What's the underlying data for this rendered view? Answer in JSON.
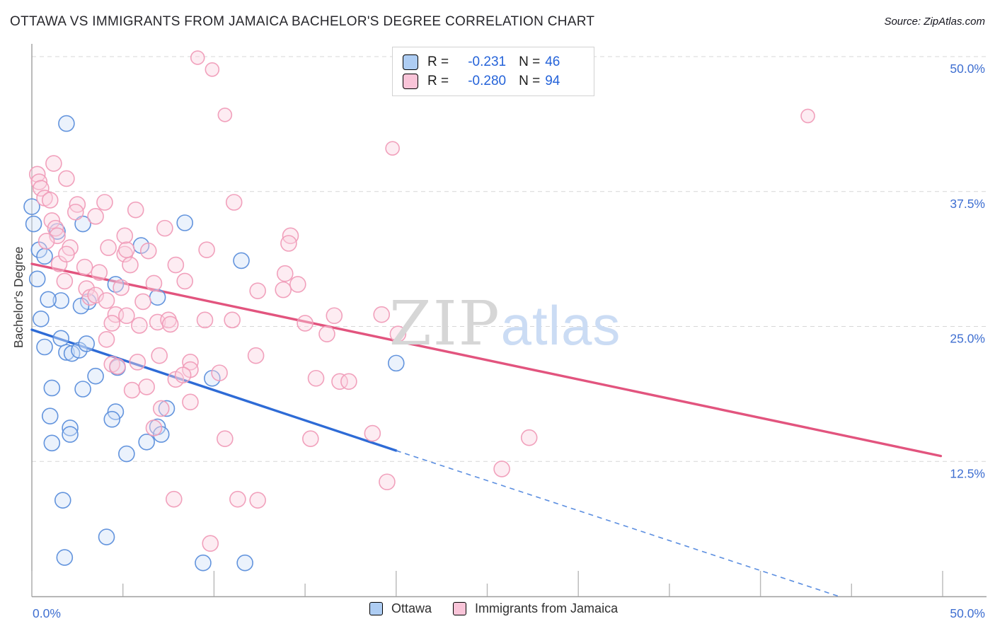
{
  "page": {
    "title": "OTTAWA VS IMMIGRANTS FROM JAMAICA BACHELOR'S DEGREE CORRELATION CHART",
    "source": "Source: ZipAtlas.com"
  },
  "watermark": {
    "zip": "ZIP",
    "atlas": "atlas"
  },
  "legend_box": {
    "rows": [
      {
        "series": "Ottawa",
        "r_label": "R =",
        "r_value": "-0.231",
        "n_label": "N =",
        "n_value": "46"
      },
      {
        "series": "Immigrants from Jamaica",
        "r_label": "R =",
        "r_value": "-0.280",
        "n_label": "N =",
        "n_value": "94"
      }
    ]
  },
  "bottom_legend": [
    {
      "label": "Ottawa"
    },
    {
      "label": "Immigrants from Jamaica"
    }
  ],
  "chart_data": {
    "type": "scatter",
    "title": "OTTAWA VS IMMIGRANTS FROM JAMAICA BACHELOR'S DEGREE CORRELATION CHART",
    "xlabel": "",
    "ylabel": "Bachelor's Degree",
    "x_axis": {
      "min": 0,
      "max": 50,
      "tick_step": 5,
      "label_left": "0.0%",
      "label_right": "50.0%",
      "unit": "%"
    },
    "y_axis": {
      "min": 0,
      "max": 51,
      "gridlines": [
        12.5,
        25,
        37.5,
        50
      ],
      "tick_labels": [
        "12.5%",
        "25.0%",
        "37.5%",
        "50.0%"
      ],
      "side": "right",
      "grid_style": "dashed"
    },
    "legend_position": "top-center",
    "series": [
      {
        "name": "Ottawa",
        "R": -0.231,
        "N": 46,
        "marker_fill": "#cfe0f7",
        "marker_stroke": "#5b8edb",
        "points": [
          [
            1.9,
            43.8
          ],
          [
            0.0,
            36.1
          ],
          [
            0.1,
            34.5
          ],
          [
            2.8,
            34.5
          ],
          [
            1.4,
            33.8
          ],
          [
            8.4,
            34.6
          ],
          [
            6.0,
            32.5
          ],
          [
            0.4,
            32.1
          ],
          [
            0.7,
            31.5
          ],
          [
            0.3,
            29.4
          ],
          [
            11.5,
            31.1
          ],
          [
            1.6,
            27.4
          ],
          [
            0.5,
            25.7
          ],
          [
            4.6,
            28.9
          ],
          [
            3.1,
            27.3
          ],
          [
            2.7,
            26.9
          ],
          [
            6.9,
            27.7
          ],
          [
            0.9,
            27.5
          ],
          [
            1.6,
            23.9
          ],
          [
            0.7,
            23.1
          ],
          [
            1.9,
            22.6
          ],
          [
            2.2,
            22.5
          ],
          [
            2.6,
            22.8
          ],
          [
            3.0,
            23.4
          ],
          [
            3.5,
            20.4
          ],
          [
            1.1,
            19.3
          ],
          [
            2.8,
            19.2
          ],
          [
            4.7,
            21.2
          ],
          [
            9.9,
            20.2
          ],
          [
            4.6,
            17.1
          ],
          [
            4.4,
            16.4
          ],
          [
            2.1,
            15.6
          ],
          [
            6.9,
            15.7
          ],
          [
            7.4,
            17.4
          ],
          [
            1.0,
            16.7
          ],
          [
            20.0,
            21.6
          ],
          [
            1.1,
            14.2
          ],
          [
            2.1,
            15.0
          ],
          [
            6.3,
            14.3
          ],
          [
            7.1,
            15.0
          ],
          [
            5.2,
            13.2
          ],
          [
            1.7,
            8.9
          ],
          [
            4.1,
            5.5
          ],
          [
            1.8,
            3.6
          ],
          [
            9.4,
            3.1
          ],
          [
            11.7,
            3.1
          ]
        ]
      },
      {
        "name": "Immigrants from Jamaica",
        "R": -0.28,
        "N": 94,
        "marker_fill": "#fad2e0",
        "marker_stroke": "#f09cb8",
        "points": [
          [
            9.1,
            49.9,
            9.5
          ],
          [
            9.9,
            48.8,
            9.5
          ],
          [
            10.6,
            44.6,
            9.5
          ],
          [
            1.2,
            40.1
          ],
          [
            0.3,
            39.1
          ],
          [
            0.4,
            38.4
          ],
          [
            0.5,
            37.8
          ],
          [
            1.9,
            38.7
          ],
          [
            0.7,
            36.9
          ],
          [
            1.0,
            36.7
          ],
          [
            2.5,
            36.3
          ],
          [
            2.4,
            35.6
          ],
          [
            4.0,
            36.5
          ],
          [
            3.5,
            35.2
          ],
          [
            5.7,
            35.8
          ],
          [
            1.1,
            34.8
          ],
          [
            1.3,
            34.1
          ],
          [
            7.3,
            34.1
          ],
          [
            11.1,
            36.5
          ],
          [
            5.1,
            33.4
          ],
          [
            14.2,
            33.4
          ],
          [
            6.4,
            32.0
          ],
          [
            1.4,
            33.4
          ],
          [
            0.8,
            32.9
          ],
          [
            2.1,
            32.3
          ],
          [
            4.2,
            32.3
          ],
          [
            5.1,
            31.7
          ],
          [
            5.2,
            32.1
          ],
          [
            9.6,
            32.1
          ],
          [
            14.1,
            32.7
          ],
          [
            1.5,
            30.8
          ],
          [
            1.9,
            31.7
          ],
          [
            2.9,
            30.5
          ],
          [
            3.7,
            30.0
          ],
          [
            5.4,
            30.7
          ],
          [
            7.9,
            30.7
          ],
          [
            1.8,
            29.2
          ],
          [
            3.0,
            28.5
          ],
          [
            4.9,
            28.6
          ],
          [
            6.7,
            29.0
          ],
          [
            8.4,
            29.2
          ],
          [
            13.9,
            29.9
          ],
          [
            14.6,
            28.9
          ],
          [
            3.2,
            27.7
          ],
          [
            3.5,
            27.9
          ],
          [
            4.1,
            27.4
          ],
          [
            6.1,
            27.3
          ],
          [
            12.4,
            28.3
          ],
          [
            13.8,
            28.4
          ],
          [
            4.6,
            26.1
          ],
          [
            4.4,
            25.3
          ],
          [
            5.2,
            26.0
          ],
          [
            6.9,
            25.4
          ],
          [
            7.5,
            25.6
          ],
          [
            7.6,
            25.2
          ],
          [
            5.9,
            25.1
          ],
          [
            9.5,
            25.6
          ],
          [
            11.0,
            25.6
          ],
          [
            15.0,
            25.3
          ],
          [
            16.6,
            26.0
          ],
          [
            16.2,
            24.3
          ],
          [
            7.0,
            22.3
          ],
          [
            4.4,
            21.5
          ],
          [
            4.7,
            21.3
          ],
          [
            5.8,
            21.7
          ],
          [
            8.7,
            21.7
          ],
          [
            8.7,
            21.0
          ],
          [
            7.9,
            20.1
          ],
          [
            8.3,
            20.5
          ],
          [
            12.3,
            22.3
          ],
          [
            10.3,
            20.7
          ],
          [
            15.6,
            20.2
          ],
          [
            16.9,
            19.9
          ],
          [
            8.7,
            18.0
          ],
          [
            7.1,
            17.4
          ],
          [
            6.7,
            15.6
          ],
          [
            5.5,
            19.1
          ],
          [
            6.3,
            19.4
          ],
          [
            4.1,
            23.8
          ],
          [
            19.8,
            41.5,
            9.5
          ],
          [
            42.6,
            44.5,
            9.5
          ],
          [
            19.2,
            26.1
          ],
          [
            20.1,
            24.3
          ],
          [
            17.4,
            19.9
          ],
          [
            18.7,
            15.1
          ],
          [
            27.3,
            14.7
          ],
          [
            10.6,
            14.6
          ],
          [
            15.3,
            14.6
          ],
          [
            7.8,
            9.0
          ],
          [
            11.3,
            9.0
          ],
          [
            12.4,
            8.9
          ],
          [
            9.8,
            4.9
          ],
          [
            25.8,
            11.8
          ],
          [
            19.5,
            10.6
          ]
        ]
      }
    ],
    "trend_lines": [
      {
        "series": "Ottawa",
        "color": "#2e6bd6",
        "solid": [
          [
            0,
            24.7
          ],
          [
            20.0,
            13.5
          ]
        ],
        "dashed": [
          [
            20.0,
            13.5
          ],
          [
            44.3,
            0.0
          ]
        ]
      },
      {
        "series": "Immigrants from Jamaica",
        "color": "#e2547e",
        "solid": [
          [
            0,
            30.8
          ],
          [
            49.9,
            13.0
          ]
        ]
      }
    ]
  },
  "colors": {
    "grid": "#d7d7d7",
    "axis": "#9e9e9e",
    "tick_mark": "#b8b8b8",
    "tick_label": "#3f6fd1",
    "legend_value": "#2563d9",
    "ottawa_trend_dashed": "#5b8ee0",
    "watermark_zip": "#d6d6d6",
    "watermark_atlas": "#cbdcf4"
  }
}
